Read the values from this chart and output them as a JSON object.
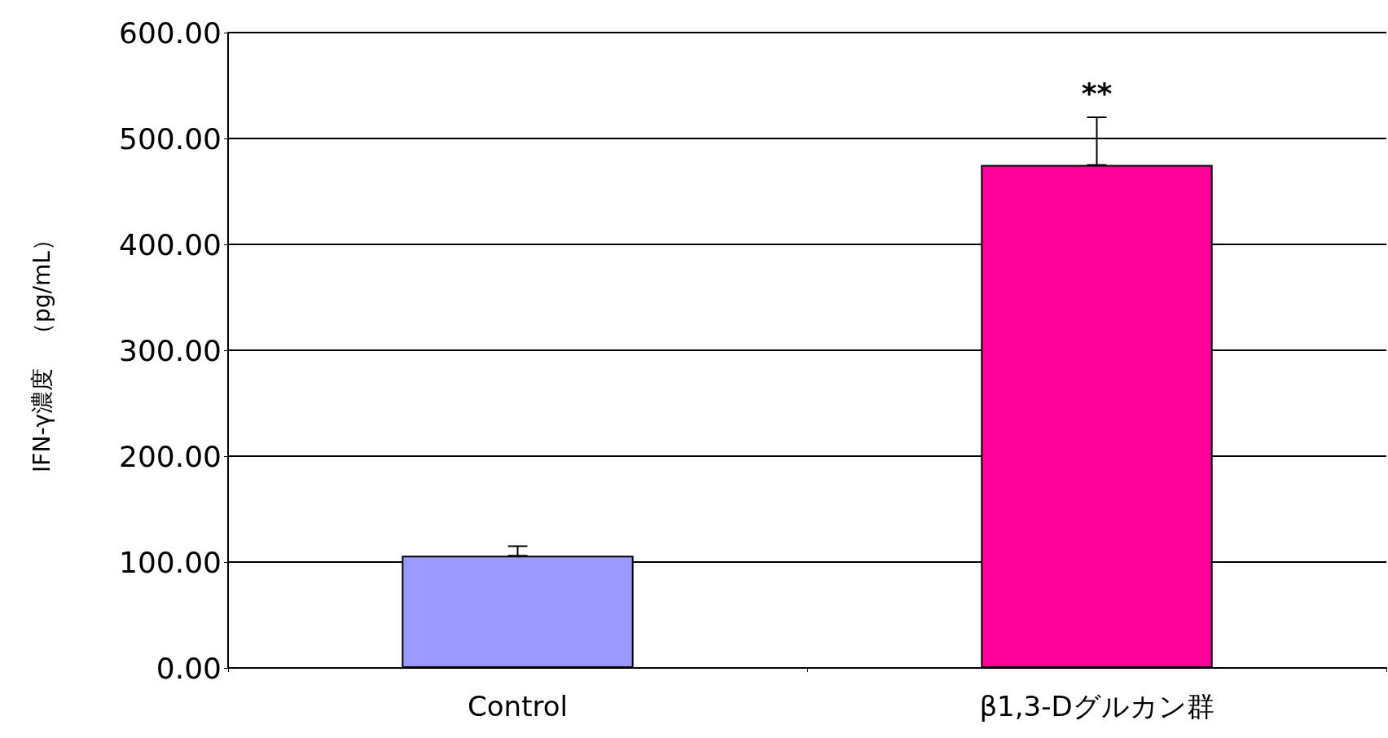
{
  "chart_data": {
    "type": "bar",
    "ylabel": "IFN-γ濃度　（pg/mL）",
    "categories": [
      "Control",
      "β1,3-Dグルカン群"
    ],
    "values": [
      106,
      475
    ],
    "colors": [
      "#9999ff",
      "#ff0099"
    ],
    "errors": [
      [
        106,
        115
      ],
      [
        475,
        520
      ]
    ],
    "ylim": [
      0,
      600
    ],
    "yticks": [
      {
        "value": 0,
        "label": "0.00"
      },
      {
        "value": 100,
        "label": "100.00"
      },
      {
        "value": 200,
        "label": "200.00"
      },
      {
        "value": 300,
        "label": "300.00"
      },
      {
        "value": 400,
        "label": "400.00"
      },
      {
        "value": 500,
        "label": "500.00"
      },
      {
        "value": 600,
        "label": "600.00"
      }
    ],
    "annotations": [
      "**"
    ],
    "grid": true
  }
}
